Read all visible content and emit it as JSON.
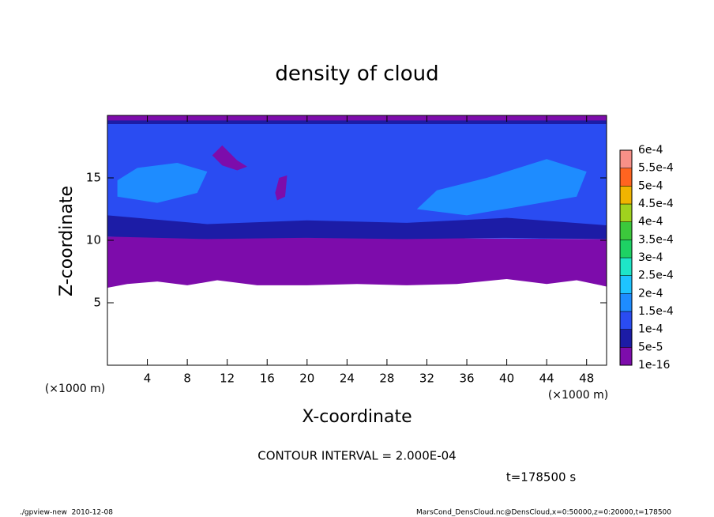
{
  "chart_data": {
    "type": "contour",
    "title": "density of cloud",
    "xlabel": "X-coordinate",
    "ylabel": "Z-coordinate",
    "xunit": "(×1000 m)",
    "yunit": "(×1000 m)",
    "xlim": [
      0,
      50
    ],
    "ylim": [
      0,
      20
    ],
    "xticks": [
      4,
      8,
      12,
      16,
      20,
      24,
      28,
      32,
      36,
      40,
      44,
      48
    ],
    "yticks": [
      5,
      10,
      15
    ],
    "colorbar": {
      "levels": [
        {
          "value": 1e-16,
          "label": "1e-16"
        },
        {
          "value": 5e-05,
          "label": "5e-5"
        },
        {
          "value": 0.0001,
          "label": "1e-4"
        },
        {
          "value": 0.00015,
          "label": "1.5e-4"
        },
        {
          "value": 0.0002,
          "label": "2e-4"
        },
        {
          "value": 0.00025,
          "label": "2.5e-4"
        },
        {
          "value": 0.0003,
          "label": "3e-4"
        },
        {
          "value": 0.00035,
          "label": "3.5e-4"
        },
        {
          "value": 0.0004,
          "label": "4e-4"
        },
        {
          "value": 0.00045,
          "label": "4.5e-4"
        },
        {
          "value": 0.0005,
          "label": "5e-4"
        },
        {
          "value": 0.00055,
          "label": "5.5e-4"
        },
        {
          "value": 0.0006,
          "label": "6e-4"
        }
      ],
      "colors": [
        "#7d0cab",
        "#1c1ca6",
        "#2a4cf2",
        "#1e8cff",
        "#1ec4ff",
        "#1ee6c8",
        "#1ed264",
        "#3cc83c",
        "#a0d21e",
        "#f0b400",
        "#ff6420",
        "#f89088"
      ]
    },
    "regions": [
      {
        "value": 2.5e-05,
        "x": [
          0,
          2,
          5,
          8,
          11,
          15,
          20,
          25,
          30,
          35,
          40,
          44,
          47,
          50,
          50,
          0
        ],
        "z": [
          6.2,
          6.5,
          6.7,
          6.4,
          6.8,
          6.4,
          6.4,
          6.5,
          6.4,
          6.5,
          6.9,
          6.5,
          6.8,
          6.3,
          10.1,
          10.3
        ]
      },
      {
        "value": 0.00012,
        "x": [
          0,
          50,
          50,
          0
        ],
        "z": [
          10.3,
          10.1,
          19.6,
          19.6
        ]
      },
      {
        "value": 7e-05,
        "x": [
          0,
          10,
          20,
          30,
          40,
          50,
          50,
          40,
          30,
          20,
          10,
          0
        ],
        "z": [
          10.3,
          10.1,
          10.2,
          10.1,
          10.2,
          10.1,
          11.2,
          11.8,
          11.4,
          11.6,
          11.3,
          12.0
        ]
      },
      {
        "value": 0.00016,
        "x": [
          1,
          5,
          9,
          10,
          7,
          3,
          1
        ],
        "z": [
          13.5,
          13.0,
          13.8,
          15.5,
          16.2,
          15.8,
          14.8
        ]
      },
      {
        "value": 0.00016,
        "x": [
          31,
          36,
          42,
          47,
          48,
          44,
          38,
          33
        ],
        "z": [
          12.5,
          12.0,
          12.8,
          13.5,
          15.5,
          16.5,
          15.0,
          14.0
        ]
      },
      {
        "value": 7e-05,
        "x": [
          0,
          50,
          50,
          0
        ],
        "z": [
          19.3,
          19.3,
          20,
          20
        ]
      },
      {
        "value": 2.5e-05,
        "x": [
          10.5,
          11.5,
          13,
          14,
          13,
          11.5
        ],
        "z": [
          16.8,
          16.0,
          15.6,
          15.9,
          16.4,
          17.6
        ]
      },
      {
        "value": 2.5e-05,
        "x": [
          17,
          17.8,
          18,
          17.2,
          16.8
        ],
        "z": [
          13.2,
          13.5,
          15.2,
          15.0,
          13.8
        ]
      },
      {
        "value": 2.5e-05,
        "x": [
          0,
          50,
          50,
          0
        ],
        "z": [
          19.6,
          19.6,
          20,
          20
        ]
      }
    ],
    "contour_interval": "CONTOUR INTERVAL = 2.000E-04",
    "time": "t=178500 s"
  },
  "footer": {
    "left": "./gpview-new  2010-12-08",
    "right": "MarsCond_DensCloud.nc@DensCloud,x=0:50000,z=0:20000,t=178500"
  }
}
